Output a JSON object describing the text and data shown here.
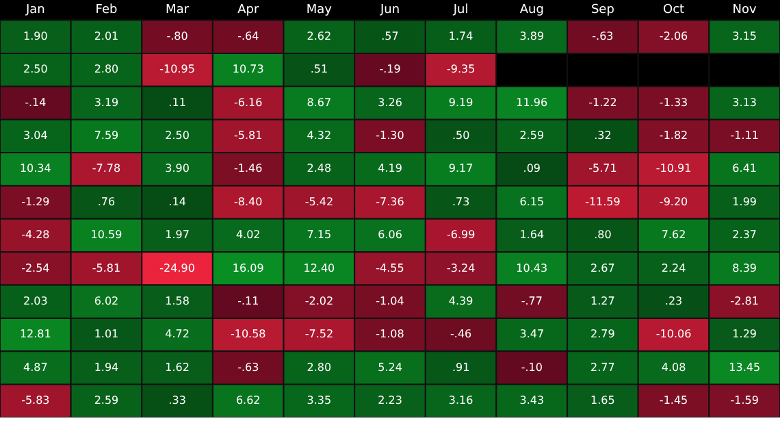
{
  "chart_data": {
    "type": "heatmap",
    "categories": [
      "Jan",
      "Feb",
      "Mar",
      "Apr",
      "May",
      "Jun",
      "Jul",
      "Aug",
      "Sep",
      "Oct",
      "Nov"
    ],
    "y_categories": [
      null,
      null,
      null,
      null,
      null,
      null,
      null,
      null,
      null,
      null,
      null,
      null
    ],
    "cells": [
      [
        1.9,
        2.01,
        -0.8,
        -0.64,
        2.62,
        0.57,
        1.74,
        3.89,
        -0.63,
        -2.06,
        3.15
      ],
      [
        2.5,
        2.8,
        -10.95,
        10.73,
        0.51,
        -0.19,
        -9.35,
        null,
        null,
        null,
        null
      ],
      [
        -0.14,
        3.19,
        0.11,
        -6.16,
        8.67,
        3.26,
        9.19,
        11.96,
        -1.22,
        -1.33,
        3.13
      ],
      [
        3.04,
        7.59,
        2.5,
        -5.81,
        4.32,
        -1.3,
        0.5,
        2.59,
        0.32,
        -1.82,
        -1.11
      ],
      [
        10.34,
        -7.78,
        3.9,
        -1.46,
        2.48,
        4.19,
        9.17,
        0.09,
        -5.71,
        -10.91,
        6.41
      ],
      [
        -1.29,
        0.76,
        0.14,
        -8.4,
        -5.42,
        -7.36,
        0.73,
        6.15,
        -11.59,
        -9.2,
        1.99
      ],
      [
        -4.28,
        10.59,
        1.97,
        4.02,
        7.15,
        6.06,
        -6.99,
        1.64,
        0.8,
        7.62,
        2.37
      ],
      [
        -2.54,
        -5.81,
        -24.9,
        16.09,
        12.4,
        -4.55,
        -3.24,
        10.43,
        2.67,
        2.24,
        8.39
      ],
      [
        2.03,
        6.02,
        1.58,
        -0.11,
        -2.02,
        -1.04,
        4.39,
        -0.77,
        1.27,
        0.23,
        -2.81
      ],
      [
        12.81,
        1.01,
        4.72,
        -10.58,
        -7.52,
        -1.08,
        -0.46,
        3.47,
        2.79,
        -10.06,
        1.29
      ],
      [
        4.87,
        1.94,
        1.62,
        -0.63,
        2.8,
        5.24,
        0.91,
        -0.1,
        2.77,
        4.08,
        13.45
      ],
      [
        -5.83,
        2.59,
        0.33,
        6.62,
        3.35,
        2.23,
        3.16,
        3.43,
        1.65,
        -1.45,
        -1.59
      ]
    ],
    "cell_labels": [
      [
        "1.90",
        "2.01",
        "-.80",
        "-.64",
        "2.62",
        ".57",
        "1.74",
        "3.89",
        "-.63",
        "-2.06",
        "3.15"
      ],
      [
        "2.50",
        "2.80",
        "-10.95",
        "10.73",
        ".51",
        "-.19",
        "-9.35",
        null,
        null,
        null,
        null
      ],
      [
        "-.14",
        "3.19",
        ".11",
        "-6.16",
        "8.67",
        "3.26",
        "9.19",
        "11.96",
        "-1.22",
        "-1.33",
        "3.13"
      ],
      [
        "3.04",
        "7.59",
        "2.50",
        "-5.81",
        "4.32",
        "-1.30",
        ".50",
        "2.59",
        ".32",
        "-1.82",
        "-1.11"
      ],
      [
        "10.34",
        "-7.78",
        "3.90",
        "-1.46",
        "2.48",
        "4.19",
        "9.17",
        ".09",
        "-5.71",
        "-10.91",
        "6.41"
      ],
      [
        "-1.29",
        ".76",
        ".14",
        "-8.40",
        "-5.42",
        "-7.36",
        ".73",
        "6.15",
        "-11.59",
        "-9.20",
        "1.99"
      ],
      [
        "-4.28",
        "10.59",
        "1.97",
        "4.02",
        "7.15",
        "6.06",
        "-6.99",
        "1.64",
        ".80",
        "7.62",
        "2.37"
      ],
      [
        "-2.54",
        "-5.81",
        "-24.90",
        "16.09",
        "12.40",
        "-4.55",
        "-3.24",
        "10.43",
        "2.67",
        "2.24",
        "8.39"
      ],
      [
        "2.03",
        "6.02",
        "1.58",
        "-.11",
        "-2.02",
        "-1.04",
        "4.39",
        "-.77",
        "1.27",
        ".23",
        "-2.81"
      ],
      [
        "12.81",
        "1.01",
        "4.72",
        "-10.58",
        "-7.52",
        "-1.08",
        "-.46",
        "3.47",
        "2.79",
        "-10.06",
        "1.29"
      ],
      [
        "4.87",
        "1.94",
        "1.62",
        "-.63",
        "2.80",
        "5.24",
        ".91",
        "-.10",
        "2.77",
        "4.08",
        "13.45"
      ],
      [
        "-5.83",
        "2.59",
        ".33",
        "6.62",
        "3.35",
        "2.23",
        "3.16",
        "3.43",
        "1.65",
        "-1.45",
        "-1.59"
      ]
    ]
  }
}
